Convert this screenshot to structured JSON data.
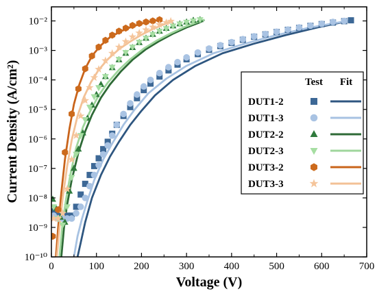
{
  "chart_data": {
    "type": "scatter",
    "xlabel": "Voltage (V)",
    "ylabel": "Current Density (A/cm²)",
    "y_scale": "log",
    "xlim": [
      0,
      700
    ],
    "ylim": [
      1e-10,
      0.03
    ],
    "x_ticks": [
      "0",
      "100",
      "200",
      "300",
      "400",
      "500",
      "600",
      "700"
    ],
    "y_ticks": [
      "10⁻¹⁰",
      "10⁻⁹",
      "10⁻⁸",
      "10⁻⁷",
      "10⁻⁶",
      "10⁻⁵",
      "10⁻⁴",
      "10⁻³",
      "10⁻²"
    ],
    "legend_position": "right",
    "legend_headers": {
      "test": "Test",
      "fit": "Fit"
    },
    "series": [
      {
        "name": "DUT1-2",
        "color": "#3d6896",
        "marker": "square",
        "fit_color": "#2e5680",
        "x": [
          5,
          15,
          25,
          35,
          45,
          55,
          65,
          75,
          85,
          95,
          105,
          115,
          125,
          135,
          145,
          160,
          175,
          190,
          205,
          220,
          240,
          260,
          280,
          300,
          325,
          350,
          375,
          400,
          425,
          450,
          475,
          500,
          525,
          550,
          575,
          600,
          625,
          650,
          665
        ],
        "y": [
          3.5e-09,
          2.5e-09,
          2.5e-09,
          2.5e-09,
          2.5e-09,
          5e-09,
          1.3e-08,
          3e-08,
          6e-08,
          1.2e-07,
          2.2e-07,
          4.5e-07,
          8e-07,
          1.5e-06,
          3e-06,
          6e-06,
          1.2e-05,
          2.4e-05,
          4.5e-05,
          7.5e-05,
          0.00013,
          0.00021,
          0.00033,
          0.0005,
          0.00075,
          0.00105,
          0.0014,
          0.0018,
          0.0023,
          0.0029,
          0.0035,
          0.0042,
          0.005,
          0.0058,
          0.0068,
          0.0078,
          0.0088,
          0.0098,
          0.0105
        ],
        "fit_x": [
          58,
          65,
          75,
          90,
          110,
          130,
          150,
          175,
          200,
          230,
          270,
          320,
          380,
          450,
          520,
          590,
          660
        ],
        "fit_y": [
          1e-10,
          3e-10,
          1.5e-09,
          1e-08,
          6e-08,
          2.5e-07,
          8e-07,
          3e-06,
          9e-06,
          3e-05,
          0.0001,
          0.0003,
          0.0008,
          0.0017,
          0.0033,
          0.006,
          0.01
        ]
      },
      {
        "name": "DUT1-3",
        "color": "#a9c3e3",
        "marker": "circle",
        "fit_color": "#a7c2e2",
        "x": [
          5,
          15,
          25,
          35,
          45,
          55,
          65,
          75,
          85,
          95,
          105,
          115,
          125,
          135,
          145,
          160,
          175,
          190,
          205,
          220,
          240,
          260,
          280,
          300,
          325,
          350,
          375,
          400,
          425,
          450,
          475,
          500,
          525,
          550,
          575,
          600,
          625,
          650
        ],
        "y": [
          2.5e-09,
          2e-09,
          2e-09,
          2e-09,
          2e-09,
          3e-09,
          5e-09,
          1e-08,
          2.5e-08,
          6e-08,
          1.3e-07,
          3e-07,
          6e-07,
          1.3e-06,
          3e-06,
          7e-06,
          1.6e-05,
          3.2e-05,
          6e-05,
          0.0001,
          0.00017,
          0.00027,
          0.0004,
          0.00058,
          0.00085,
          0.00115,
          0.0015,
          0.0019,
          0.0024,
          0.003,
          0.0036,
          0.0043,
          0.0051,
          0.006,
          0.0069,
          0.008,
          0.0092,
          0.01
        ],
        "fit_x": [
          50,
          58,
          68,
          80,
          95,
          115,
          135,
          160,
          185,
          215,
          255,
          300,
          360,
          430,
          500,
          570,
          640,
          660
        ],
        "fit_y": [
          1e-10,
          5e-10,
          2e-09,
          8e-09,
          4e-08,
          2e-07,
          7e-07,
          3e-06,
          1e-05,
          3.5e-05,
          0.00011,
          0.0003,
          0.0008,
          0.0017,
          0.0033,
          0.0058,
          0.009,
          0.01
        ]
      },
      {
        "name": "DUT2-2",
        "color": "#2f7a3c",
        "marker": "triangle-up",
        "fit_color": "#2e6a36",
        "x": [
          3,
          10,
          20,
          30,
          40,
          50,
          60,
          70,
          80,
          90,
          100,
          110,
          120,
          135,
          150,
          165,
          180,
          195,
          210,
          225,
          240,
          255,
          270,
          285,
          300,
          315,
          330
        ],
        "y": [
          9e-09,
          4.5e-09,
          2.2e-09,
          1.5e-09,
          1.7e-08,
          1e-07,
          4.5e-07,
          1.6e-06,
          5e-06,
          1.4e-05,
          3.2e-05,
          7e-05,
          0.00013,
          0.00026,
          0.00048,
          0.0008,
          0.00125,
          0.00185,
          0.0026,
          0.0035,
          0.0045,
          0.0056,
          0.0068,
          0.008,
          0.0092,
          0.0105,
          0.011
        ],
        "fit_x": [
          22,
          28,
          35,
          45,
          60,
          75,
          90,
          110,
          130,
          155,
          180,
          210,
          240,
          270,
          300,
          330,
          340
        ],
        "fit_y": [
          1e-10,
          1e-09,
          6e-09,
          4e-08,
          3.5e-07,
          1.8e-06,
          6.5e-06,
          2.5e-05,
          7e-05,
          0.0002,
          0.00048,
          0.0011,
          0.0021,
          0.0037,
          0.006,
          0.009,
          0.011
        ]
      },
      {
        "name": "DUT2-3",
        "color": "#a6dea2",
        "marker": "triangle-down",
        "fit_color": "#9fd69c",
        "x": [
          5,
          15,
          25,
          35,
          45,
          55,
          65,
          75,
          85,
          95,
          105,
          120,
          135,
          150,
          165,
          180,
          195,
          210,
          225,
          240,
          255,
          270,
          285,
          300,
          315,
          330
        ],
        "y": [
          5e-09,
          2e-09,
          1.2e-09,
          5e-09,
          5e-08,
          3e-07,
          1.3e-06,
          4.5e-06,
          1.2e-05,
          2.7e-05,
          5.5e-05,
          0.00013,
          0.00027,
          0.0005,
          0.00085,
          0.0013,
          0.0019,
          0.0026,
          0.0035,
          0.0045,
          0.0055,
          0.0067,
          0.0079,
          0.009,
          0.01,
          0.011
        ],
        "fit_x": [
          18,
          25,
          33,
          42,
          55,
          70,
          85,
          105,
          125,
          150,
          175,
          205,
          235,
          265,
          295,
          325,
          340
        ],
        "fit_y": [
          1e-10,
          1.5e-09,
          1e-08,
          6e-08,
          5e-07,
          2.5e-06,
          8e-06,
          3e-05,
          8e-05,
          0.00022,
          0.0005,
          0.00115,
          0.0022,
          0.0038,
          0.0062,
          0.0093,
          0.011
        ]
      },
      {
        "name": "DUT3-2",
        "color": "#cc6a1c",
        "marker": "hexagon",
        "fit_color": "#c9641b",
        "x": [
          3,
          15,
          30,
          45,
          60,
          75,
          90,
          105,
          120,
          135,
          150,
          165,
          180,
          195,
          210,
          225,
          240
        ],
        "y": [
          5e-10,
          4e-09,
          3.5e-07,
          7e-06,
          5e-05,
          0.00024,
          0.00065,
          0.0013,
          0.0022,
          0.0033,
          0.0045,
          0.0057,
          0.007,
          0.0082,
          0.0092,
          0.01,
          0.011
        ],
        "fit_x": [
          10,
          15,
          22,
          30,
          40,
          50,
          62,
          75,
          90,
          110,
          130,
          155,
          180,
          205,
          230,
          245
        ],
        "fit_y": [
          1e-10,
          1e-09,
          1.5e-08,
          2e-07,
          2.2e-06,
          1.5e-05,
          7e-05,
          0.00024,
          0.00065,
          0.0015,
          0.0028,
          0.0045,
          0.0065,
          0.0085,
          0.0103,
          0.011
        ]
      },
      {
        "name": "DUT3-3",
        "color": "#f5c59b",
        "marker": "star",
        "fit_color": "#f3c196",
        "x": [
          5,
          15,
          25,
          35,
          45,
          55,
          65,
          75,
          85,
          95,
          105,
          120,
          135,
          150,
          165,
          180,
          195,
          210,
          225,
          240,
          255,
          265
        ],
        "y": [
          2e-09,
          2e-09,
          3e-09,
          2e-08,
          2e-07,
          1.3e-06,
          6e-06,
          2e-05,
          5.5e-05,
          0.00012,
          0.00023,
          0.00045,
          0.0008,
          0.0013,
          0.002,
          0.0029,
          0.0039,
          0.005,
          0.0062,
          0.0075,
          0.0088,
          0.0098
        ],
        "fit_x": [
          12,
          18,
          25,
          35,
          45,
          58,
          72,
          88,
          105,
          125,
          150,
          175,
          200,
          225,
          250,
          270
        ],
        "fit_y": [
          1e-10,
          1e-09,
          1e-08,
          1.2e-07,
          9e-07,
          6e-06,
          2.6e-05,
          8.5e-05,
          0.00022,
          0.0005,
          0.0011,
          0.002,
          0.0034,
          0.0053,
          0.0077,
          0.01
        ]
      }
    ]
  }
}
